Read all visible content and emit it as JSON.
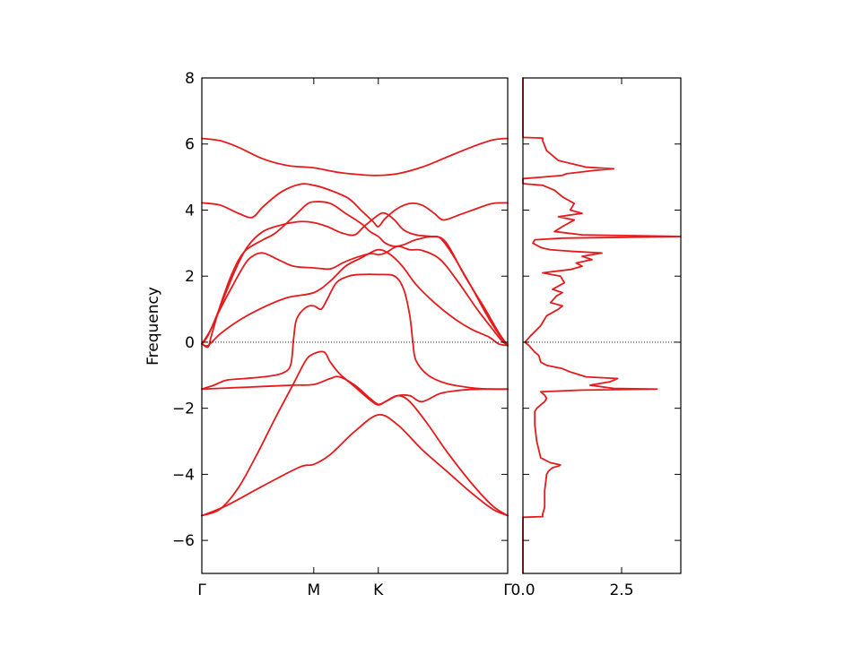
{
  "colors": {
    "series": "#e41a1c",
    "axis": "#000000"
  },
  "chart_data": [
    {
      "type": "line",
      "subtype": "band-structure",
      "ylabel": "Frequency",
      "ylim": [
        -7,
        8
      ],
      "yticks": [
        -6,
        -4,
        -2,
        0,
        2,
        4,
        6
      ],
      "ytick_labels": [
        "−6",
        "−4",
        "−2",
        "0",
        "2",
        "4",
        "6"
      ],
      "xlim": [
        0,
        1
      ],
      "xticks": [
        0,
        0.366,
        0.577,
        1
      ],
      "xtick_labels": [
        "Γ",
        "M",
        "K",
        "Γ"
      ],
      "reference_line_y": 0,
      "grid": false,
      "bands": [
        [
          [
            0,
            -5.25
          ],
          [
            0.08,
            -4.95
          ],
          [
            0.2,
            -4.35
          ],
          [
            0.32,
            -3.78
          ],
          [
            0.366,
            -3.7
          ],
          [
            0.42,
            -3.4
          ],
          [
            0.5,
            -2.7
          ],
          [
            0.577,
            -2.2
          ],
          [
            0.64,
            -2.5
          ],
          [
            0.72,
            -3.25
          ],
          [
            0.8,
            -3.9
          ],
          [
            0.88,
            -4.55
          ],
          [
            0.95,
            -5.05
          ],
          [
            1,
            -5.25
          ]
        ],
        [
          [
            0,
            -5.25
          ],
          [
            0.06,
            -5.05
          ],
          [
            0.12,
            -4.4
          ],
          [
            0.18,
            -3.4
          ],
          [
            0.24,
            -2.3
          ],
          [
            0.3,
            -1.25
          ],
          [
            0.34,
            -0.55
          ],
          [
            0.366,
            -0.35
          ],
          [
            0.4,
            -0.3
          ],
          [
            0.42,
            -0.6
          ],
          [
            0.45,
            -0.95
          ],
          [
            0.5,
            -1.35
          ],
          [
            0.55,
            -1.75
          ],
          [
            0.577,
            -1.9
          ],
          [
            0.6,
            -1.8
          ],
          [
            0.64,
            -1.62
          ],
          [
            0.68,
            -1.8
          ],
          [
            0.74,
            -2.5
          ],
          [
            0.8,
            -3.3
          ],
          [
            0.88,
            -4.25
          ],
          [
            0.95,
            -4.95
          ],
          [
            1,
            -5.25
          ]
        ],
        [
          [
            0,
            -1.42
          ],
          [
            0.1,
            -1.38
          ],
          [
            0.2,
            -1.34
          ],
          [
            0.3,
            -1.3
          ],
          [
            0.366,
            -1.28
          ],
          [
            0.42,
            -1.1
          ],
          [
            0.45,
            -1.05
          ],
          [
            0.5,
            -1.3
          ],
          [
            0.55,
            -1.7
          ],
          [
            0.577,
            -1.88
          ],
          [
            0.6,
            -1.8
          ],
          [
            0.64,
            -1.62
          ],
          [
            0.68,
            -1.62
          ],
          [
            0.72,
            -1.8
          ],
          [
            0.78,
            -1.55
          ],
          [
            0.85,
            -1.45
          ],
          [
            0.92,
            -1.42
          ],
          [
            1,
            -1.42
          ]
        ],
        [
          [
            0,
            -1.42
          ],
          [
            0.04,
            -1.3
          ],
          [
            0.08,
            -1.15
          ],
          [
            0.14,
            -1.1
          ],
          [
            0.2,
            -1.05
          ],
          [
            0.26,
            -0.95
          ],
          [
            0.29,
            -0.7
          ],
          [
            0.3,
            0.1
          ],
          [
            0.31,
            0.7
          ],
          [
            0.34,
            1.05
          ],
          [
            0.366,
            1.1
          ],
          [
            0.39,
            1.0
          ],
          [
            0.41,
            1.3
          ],
          [
            0.44,
            1.8
          ],
          [
            0.48,
            2.0
          ],
          [
            0.52,
            2.05
          ],
          [
            0.577,
            2.05
          ],
          [
            0.63,
            2.0
          ],
          [
            0.66,
            1.6
          ],
          [
            0.68,
            0.8
          ],
          [
            0.69,
            0.0
          ],
          [
            0.7,
            -0.55
          ],
          [
            0.74,
            -1.0
          ],
          [
            0.8,
            -1.25
          ],
          [
            0.88,
            -1.38
          ],
          [
            0.94,
            -1.42
          ],
          [
            1,
            -1.42
          ]
        ],
        [
          [
            0,
            -0.05
          ],
          [
            0.02,
            -0.1
          ],
          [
            0.06,
            0.25
          ],
          [
            0.12,
            0.65
          ],
          [
            0.2,
            1.05
          ],
          [
            0.28,
            1.35
          ],
          [
            0.366,
            1.5
          ],
          [
            0.42,
            1.85
          ],
          [
            0.47,
            2.3
          ],
          [
            0.52,
            2.55
          ],
          [
            0.56,
            2.75
          ],
          [
            0.577,
            2.8
          ],
          [
            0.6,
            2.75
          ],
          [
            0.63,
            2.55
          ],
          [
            0.66,
            2.25
          ],
          [
            0.7,
            1.75
          ],
          [
            0.76,
            1.2
          ],
          [
            0.82,
            0.75
          ],
          [
            0.88,
            0.4
          ],
          [
            0.94,
            0.15
          ],
          [
            0.97,
            -0.05
          ],
          [
            1,
            -0.1
          ]
        ],
        [
          [
            0,
            -0.05
          ],
          [
            0.02,
            0.2
          ],
          [
            0.06,
            1.0
          ],
          [
            0.1,
            1.7
          ],
          [
            0.14,
            2.35
          ],
          [
            0.165,
            2.6
          ],
          [
            0.2,
            2.7
          ],
          [
            0.25,
            2.5
          ],
          [
            0.3,
            2.3
          ],
          [
            0.366,
            2.25
          ],
          [
            0.42,
            2.22
          ],
          [
            0.46,
            2.4
          ],
          [
            0.5,
            2.55
          ],
          [
            0.55,
            2.68
          ],
          [
            0.577,
            2.65
          ],
          [
            0.6,
            2.7
          ],
          [
            0.64,
            2.9
          ],
          [
            0.68,
            2.8
          ],
          [
            0.72,
            2.78
          ],
          [
            0.78,
            2.5
          ],
          [
            0.84,
            1.8
          ],
          [
            0.9,
            1.0
          ],
          [
            0.95,
            0.4
          ],
          [
            0.98,
            0.05
          ],
          [
            1,
            -0.1
          ]
        ],
        [
          [
            0,
            -0.05
          ],
          [
            0.03,
            0.4
          ],
          [
            0.07,
            1.3
          ],
          [
            0.11,
            2.2
          ],
          [
            0.15,
            2.9
          ],
          [
            0.2,
            3.35
          ],
          [
            0.26,
            3.55
          ],
          [
            0.32,
            3.65
          ],
          [
            0.366,
            3.62
          ],
          [
            0.41,
            3.5
          ],
          [
            0.46,
            3.3
          ],
          [
            0.5,
            3.25
          ],
          [
            0.53,
            3.5
          ],
          [
            0.577,
            3.85
          ],
          [
            0.6,
            3.9
          ],
          [
            0.63,
            3.7
          ],
          [
            0.66,
            3.4
          ],
          [
            0.7,
            3.25
          ],
          [
            0.75,
            3.2
          ],
          [
            0.78,
            3.15
          ],
          [
            0.82,
            2.65
          ],
          [
            0.88,
            1.7
          ],
          [
            0.93,
            0.85
          ],
          [
            0.97,
            0.25
          ],
          [
            1,
            -0.1
          ]
        ],
        [
          [
            0,
            -0.05
          ],
          [
            0.02,
            -0.15
          ],
          [
            0.03,
            0.15
          ],
          [
            0.06,
            1.1
          ],
          [
            0.1,
            2.1
          ],
          [
            0.14,
            2.75
          ],
          [
            0.2,
            3.1
          ],
          [
            0.24,
            3.3
          ],
          [
            0.3,
            3.8
          ],
          [
            0.34,
            4.15
          ],
          [
            0.366,
            4.25
          ],
          [
            0.42,
            4.2
          ],
          [
            0.47,
            3.9
          ],
          [
            0.52,
            3.6
          ],
          [
            0.55,
            3.35
          ],
          [
            0.577,
            3.2
          ],
          [
            0.6,
            3.0
          ],
          [
            0.63,
            2.9
          ],
          [
            0.66,
            2.95
          ],
          [
            0.7,
            3.1
          ],
          [
            0.76,
            3.2
          ],
          [
            0.8,
            3.0
          ],
          [
            0.86,
            2.0
          ],
          [
            0.92,
            1.1
          ],
          [
            0.97,
            0.3
          ],
          [
            1,
            -0.1
          ]
        ],
        [
          [
            0,
            4.22
          ],
          [
            0.06,
            4.15
          ],
          [
            0.12,
            3.9
          ],
          [
            0.165,
            3.78
          ],
          [
            0.2,
            4.1
          ],
          [
            0.26,
            4.55
          ],
          [
            0.32,
            4.78
          ],
          [
            0.366,
            4.75
          ],
          [
            0.42,
            4.6
          ],
          [
            0.48,
            4.35
          ],
          [
            0.52,
            4.0
          ],
          [
            0.56,
            3.65
          ],
          [
            0.577,
            3.5
          ],
          [
            0.6,
            3.75
          ],
          [
            0.64,
            4.05
          ],
          [
            0.68,
            4.2
          ],
          [
            0.72,
            4.15
          ],
          [
            0.76,
            3.9
          ],
          [
            0.79,
            3.7
          ],
          [
            0.84,
            3.85
          ],
          [
            0.9,
            4.05
          ],
          [
            0.95,
            4.2
          ],
          [
            1,
            4.22
          ]
        ],
        [
          [
            0,
            6.17
          ],
          [
            0.06,
            6.1
          ],
          [
            0.12,
            5.9
          ],
          [
            0.2,
            5.55
          ],
          [
            0.28,
            5.35
          ],
          [
            0.366,
            5.28
          ],
          [
            0.44,
            5.15
          ],
          [
            0.52,
            5.07
          ],
          [
            0.577,
            5.05
          ],
          [
            0.64,
            5.1
          ],
          [
            0.72,
            5.3
          ],
          [
            0.8,
            5.6
          ],
          [
            0.88,
            5.9
          ],
          [
            0.95,
            6.12
          ],
          [
            1,
            6.17
          ]
        ]
      ]
    },
    {
      "type": "line",
      "subtype": "density-of-states",
      "xlim": [
        0,
        4.0
      ],
      "xticks": [
        0,
        2.5
      ],
      "xtick_labels": [
        "0.0",
        "2.5"
      ],
      "ylim": [
        -7,
        8
      ],
      "grid": false,
      "dos": [
        [
          -7.0,
          0.0
        ],
        [
          -6.0,
          0.0
        ],
        [
          -5.3,
          0.0
        ],
        [
          -5.28,
          0.5
        ],
        [
          -5.2,
          0.5
        ],
        [
          -5.0,
          0.55
        ],
        [
          -4.5,
          0.55
        ],
        [
          -4.0,
          0.6
        ],
        [
          -3.9,
          0.65
        ],
        [
          -3.8,
          0.75
        ],
        [
          -3.75,
          0.9
        ],
        [
          -3.72,
          0.95
        ],
        [
          -3.7,
          0.9
        ],
        [
          -3.65,
          0.7
        ],
        [
          -3.5,
          0.45
        ],
        [
          -3.0,
          0.35
        ],
        [
          -2.5,
          0.3
        ],
        [
          -2.1,
          0.3
        ],
        [
          -2.0,
          0.35
        ],
        [
          -1.9,
          0.45
        ],
        [
          -1.8,
          0.55
        ],
        [
          -1.7,
          0.6
        ],
        [
          -1.6,
          0.55
        ],
        [
          -1.5,
          0.45
        ],
        [
          -1.45,
          1.5
        ],
        [
          -1.42,
          3.4
        ],
        [
          -1.4,
          2.3
        ],
        [
          -1.3,
          1.7
        ],
        [
          -1.2,
          2.2
        ],
        [
          -1.1,
          2.4
        ],
        [
          -1.05,
          1.6
        ],
        [
          -0.9,
          1.2
        ],
        [
          -0.8,
          1.0
        ],
        [
          -0.7,
          0.6
        ],
        [
          -0.6,
          0.45
        ],
        [
          -0.4,
          0.4
        ],
        [
          -0.3,
          0.3
        ],
        [
          -0.1,
          0.15
        ],
        [
          0.0,
          0.05
        ],
        [
          0.2,
          0.2
        ],
        [
          0.5,
          0.45
        ],
        [
          0.8,
          0.6
        ],
        [
          1.0,
          0.9
        ],
        [
          1.1,
          1.0
        ],
        [
          1.2,
          0.7
        ],
        [
          1.4,
          0.85
        ],
        [
          1.5,
          1.0
        ],
        [
          1.6,
          0.75
        ],
        [
          1.8,
          1.05
        ],
        [
          2.0,
          0.95
        ],
        [
          2.1,
          0.5
        ],
        [
          2.2,
          1.2
        ],
        [
          2.3,
          1.5
        ],
        [
          2.4,
          1.35
        ],
        [
          2.5,
          1.75
        ],
        [
          2.6,
          1.5
        ],
        [
          2.7,
          2.0
        ],
        [
          2.75,
          1.25
        ],
        [
          2.8,
          0.7
        ],
        [
          2.85,
          0.5
        ],
        [
          2.9,
          0.4
        ],
        [
          3.0,
          0.25
        ],
        [
          3.1,
          0.3
        ],
        [
          3.15,
          1.0
        ],
        [
          3.2,
          4.0
        ],
        [
          3.25,
          1.5
        ],
        [
          3.35,
          0.8
        ],
        [
          3.5,
          1.0
        ],
        [
          3.7,
          1.3
        ],
        [
          3.8,
          0.9
        ],
        [
          3.9,
          1.5
        ],
        [
          4.0,
          1.2
        ],
        [
          4.2,
          1.3
        ],
        [
          4.4,
          1.0
        ],
        [
          4.6,
          0.8
        ],
        [
          4.75,
          0.5
        ],
        [
          4.8,
          0.0
        ],
        [
          4.95,
          0.0
        ],
        [
          5.0,
          0.5
        ],
        [
          5.05,
          1.0
        ],
        [
          5.1,
          1.1
        ],
        [
          5.2,
          1.8
        ],
        [
          5.25,
          2.3
        ],
        [
          5.3,
          1.6
        ],
        [
          5.5,
          0.9
        ],
        [
          5.8,
          0.6
        ],
        [
          6.1,
          0.5
        ],
        [
          6.18,
          0.5
        ],
        [
          6.2,
          0.0
        ],
        [
          7.0,
          0.0
        ],
        [
          8.0,
          0.0
        ]
      ]
    }
  ]
}
